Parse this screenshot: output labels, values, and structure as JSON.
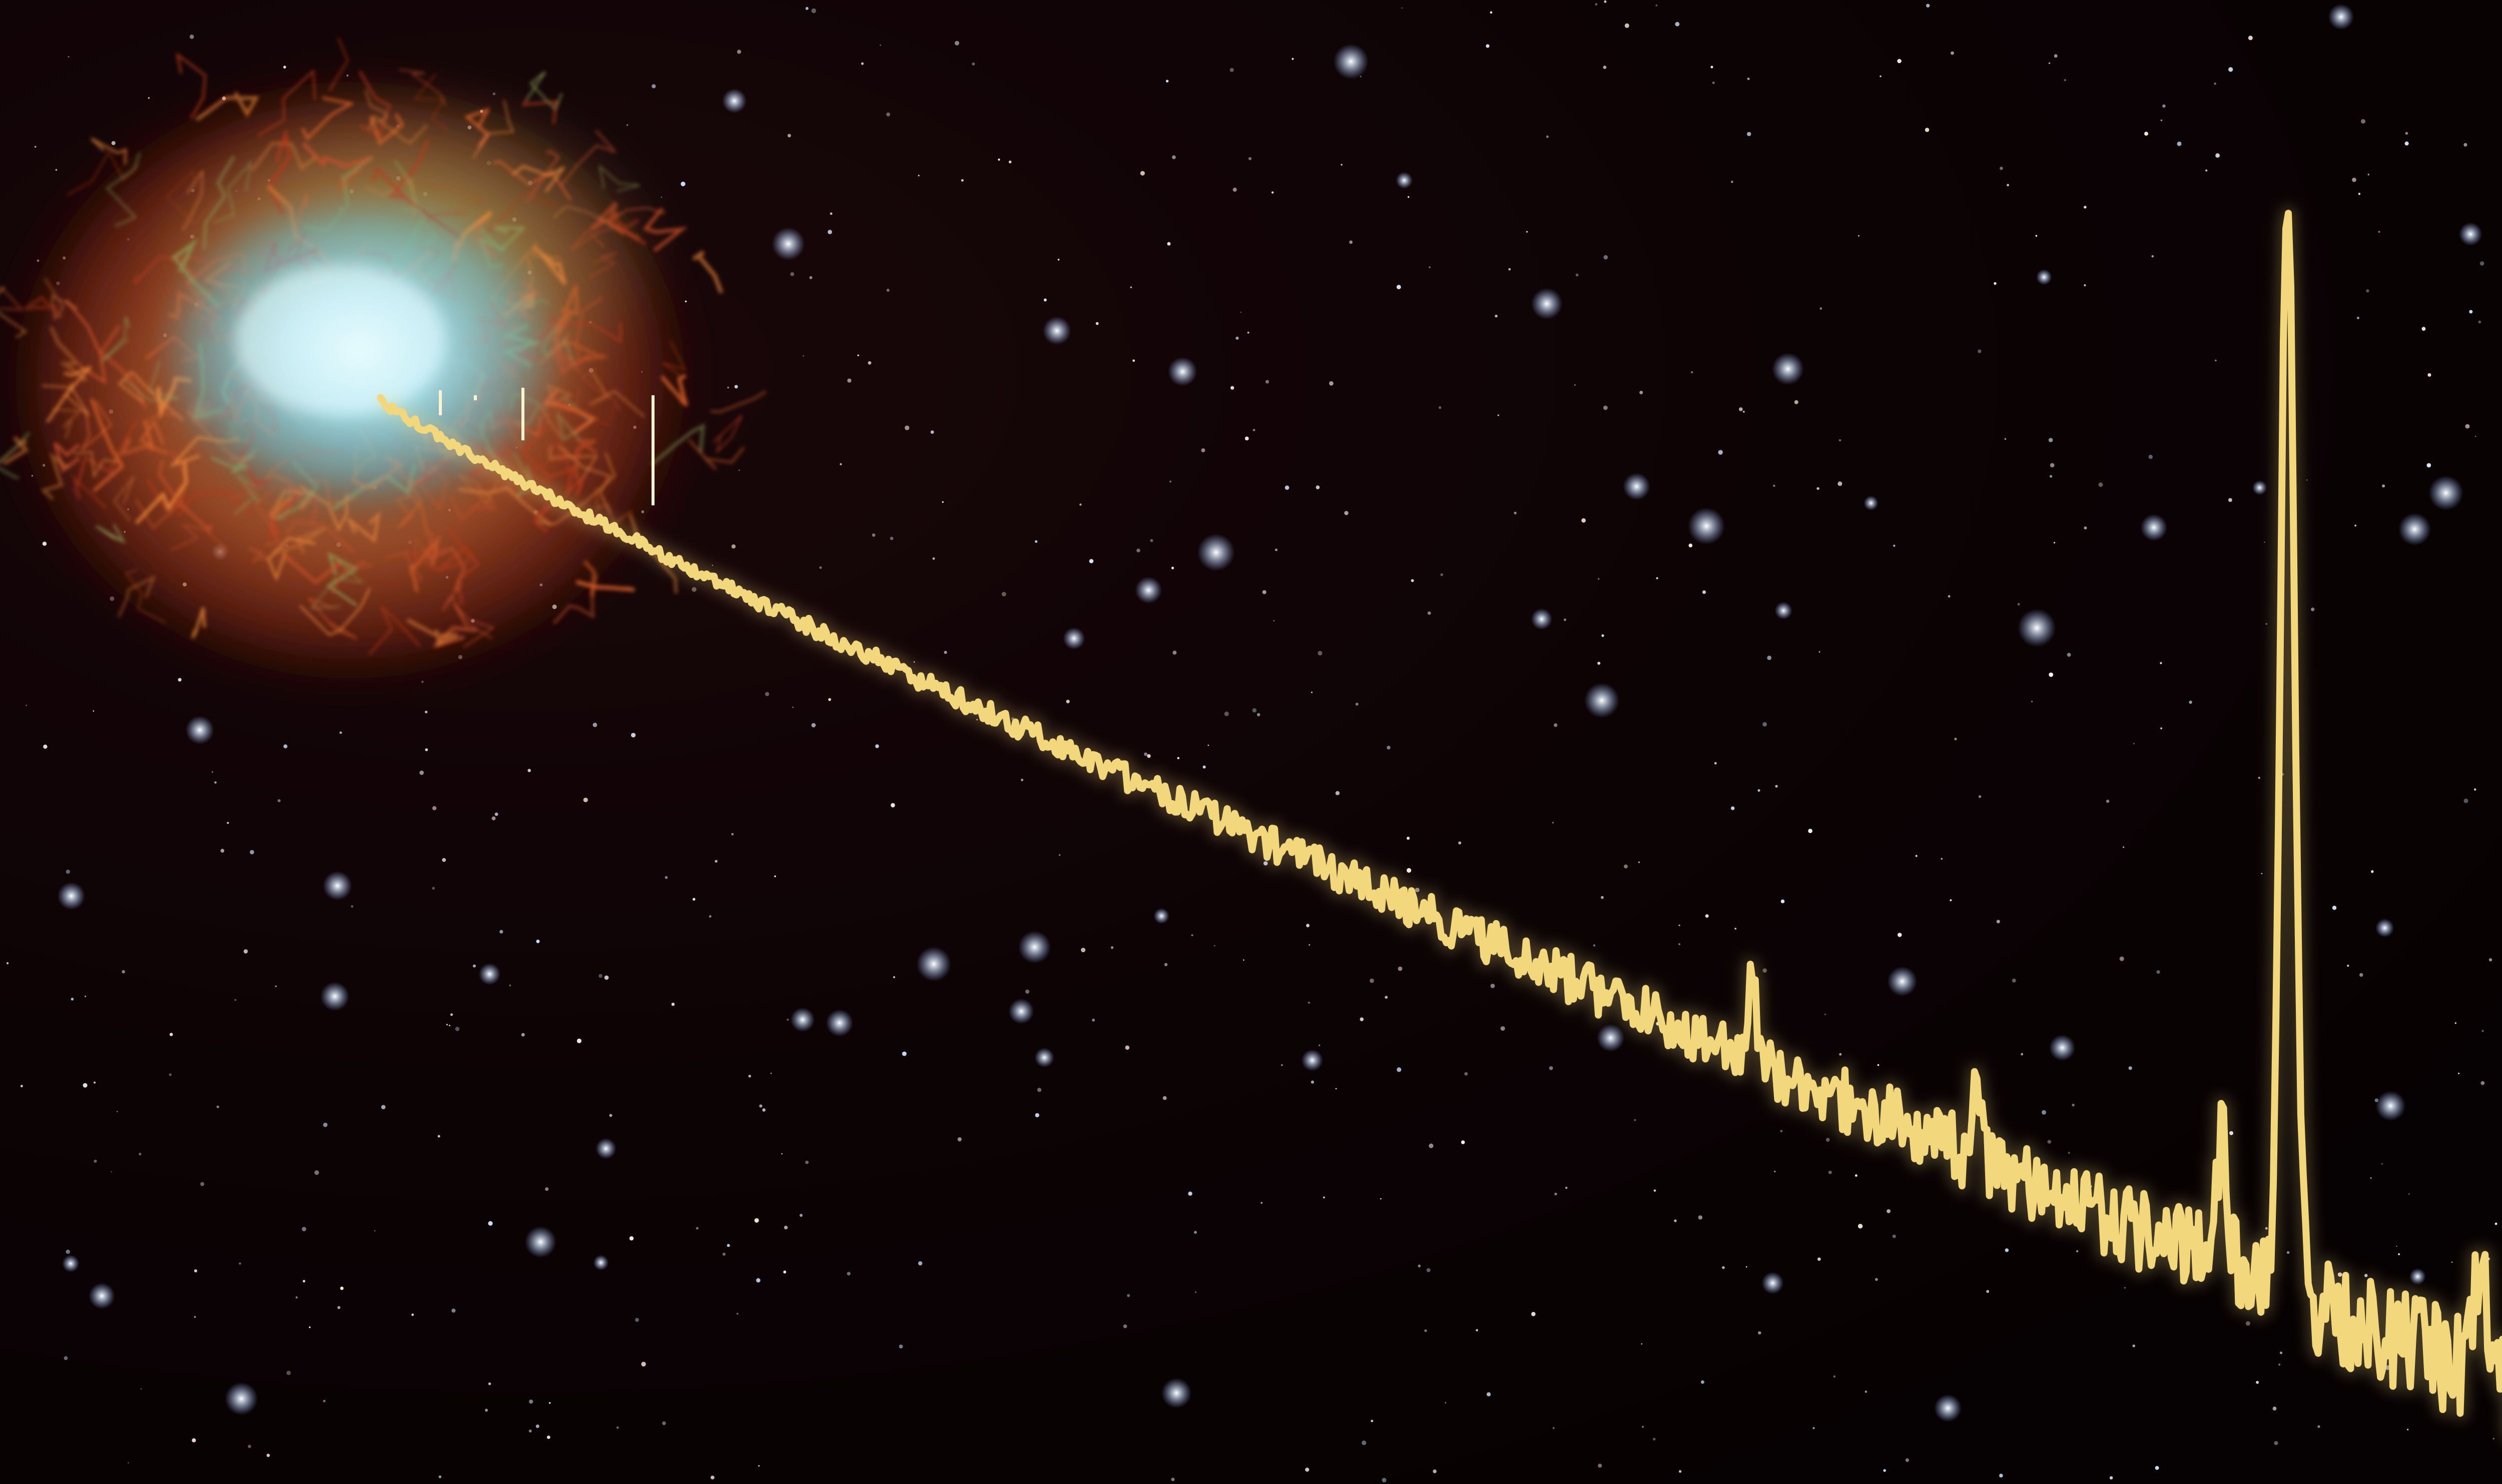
{
  "scene": {
    "subject": "nebula-with-spectrum-trace",
    "colors": {
      "space": "#0a0204",
      "space_mid": "#140608",
      "nebula_core": "#bfeaf5",
      "nebula_mid": "#8fd3e6",
      "filament_orange": "#e2642a",
      "filament_red": "#b8381c",
      "filament_green": "#8ea35a",
      "trace": "#f2d77c",
      "trace_highlight": "#fff4cf"
    }
  }
}
